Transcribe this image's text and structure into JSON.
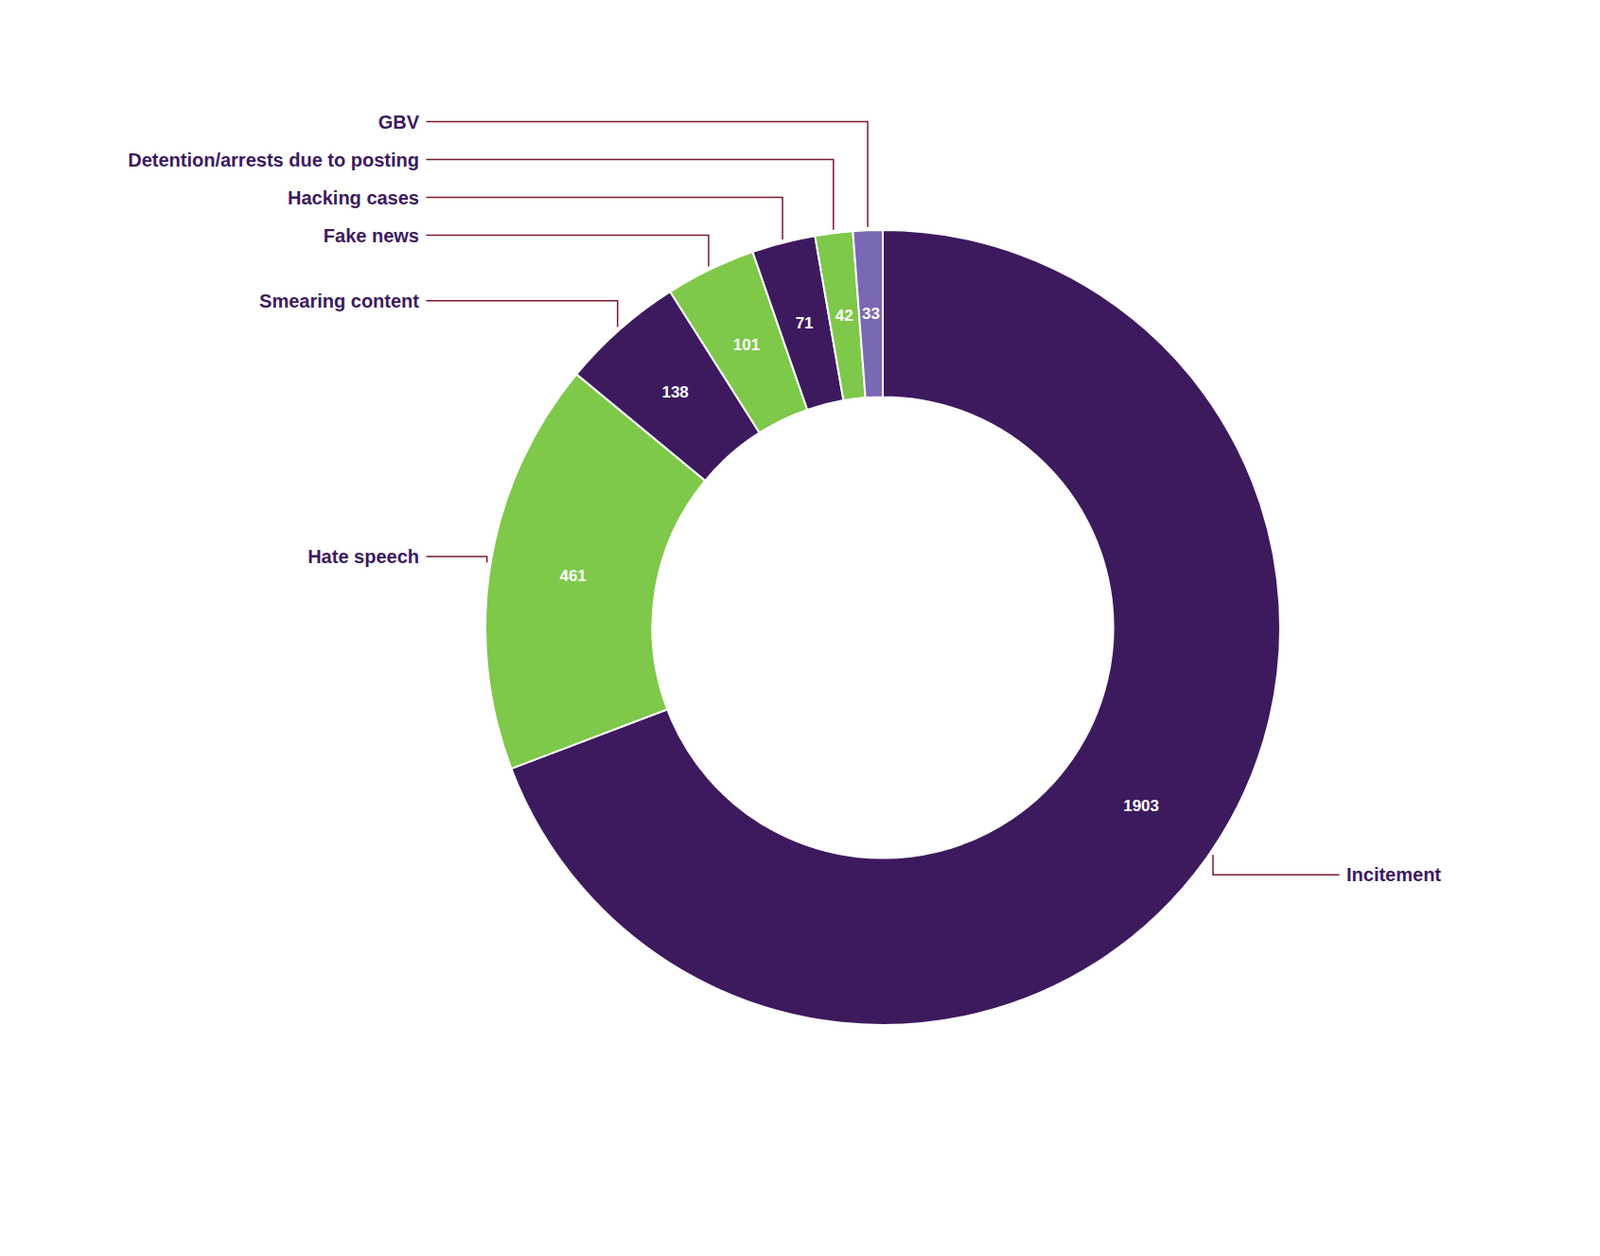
{
  "chart_data": {
    "type": "donut",
    "categories": [
      "Incitement",
      "Hate speech",
      "Smearing content",
      "Fake news",
      "Hacking cases",
      "Detention/arrests due to posting",
      "GBV"
    ],
    "values": [
      1903,
      461,
      138,
      101,
      71,
      42,
      33
    ],
    "colors": [
      "#3d1a5e",
      "#7ec84a",
      "#3d1a5e",
      "#7ec84a",
      "#3d1a5e",
      "#7ec84a",
      "#7b68b5"
    ],
    "data_labels": true
  }
}
